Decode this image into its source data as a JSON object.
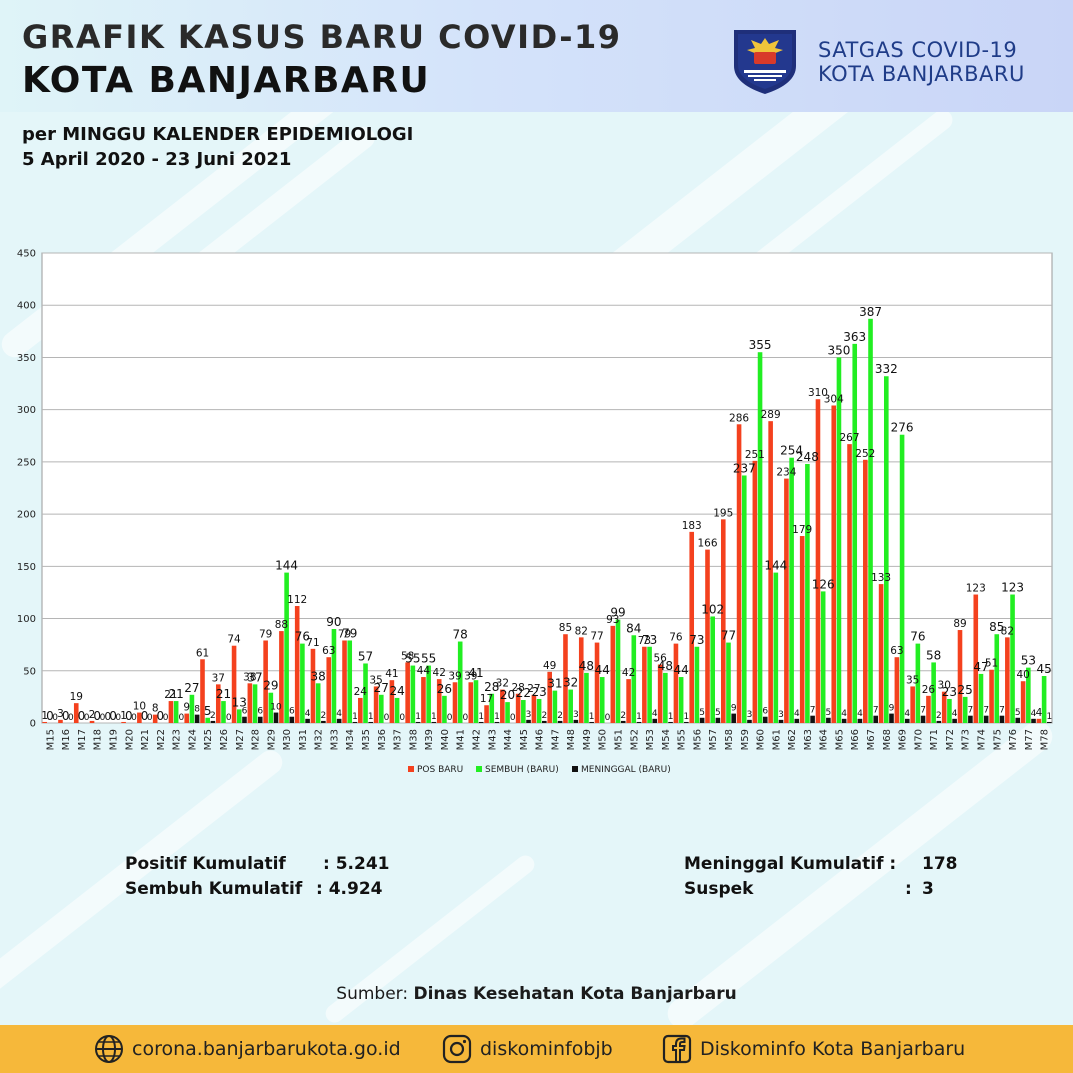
{
  "header": {
    "title_line1": "GRAFIK KASUS BARU COVID-19",
    "title_line2": "KOTA BANJARBARU",
    "subtitle_line1": "per MINGGU KALENDER EPIDEMIOLOGI",
    "subtitle_line2": "5 April 2020 - 23 Juni 2021",
    "org_line1": "SATGAS COVID-19",
    "org_line2": "KOTA BANJARBARU",
    "logo_icon": "garuda-shield-logo"
  },
  "chart_data": {
    "type": "bar",
    "title": "",
    "xlabel": "",
    "ylabel": "",
    "ylim": [
      0,
      450
    ],
    "yticks": [
      0,
      50,
      100,
      150,
      200,
      250,
      300,
      350,
      400,
      450
    ],
    "grid": true,
    "legend_position": "bottom",
    "categories": [
      "M15",
      "M16",
      "M17",
      "M18",
      "M19",
      "M20",
      "M21",
      "M22",
      "M23",
      "M24",
      "M25",
      "M26",
      "M27",
      "M28",
      "M29",
      "M30",
      "M31",
      "M32",
      "M33",
      "M34",
      "M35",
      "M36",
      "M37",
      "M38",
      "M39",
      "M40",
      "M41",
      "M42",
      "M43",
      "M44",
      "M45",
      "M46",
      "M47",
      "M48",
      "M49",
      "M50",
      "M51",
      "M52",
      "M53",
      "M54",
      "M55",
      "M56",
      "M57",
      "M58",
      "M59",
      "M60",
      "M61",
      "M62",
      "M63",
      "M64",
      "M65",
      "M66",
      "M67",
      "M68",
      "M69",
      "M70",
      "M71",
      "M72",
      "M73",
      "M74",
      "M75",
      "M76",
      "M77",
      "M78"
    ],
    "series": [
      {
        "name": "POS BARU",
        "color": "#f4411e",
        "values": [
          1,
          3,
          19,
          2,
          0,
          1,
          10,
          8,
          21,
          9,
          61,
          37,
          74,
          38,
          79,
          88,
          112,
          71,
          63,
          79,
          24,
          35,
          41,
          58,
          44,
          42,
          39,
          39,
          17,
          32,
          28,
          27,
          49,
          85,
          82,
          77,
          93,
          42,
          73,
          56,
          76,
          183,
          166,
          195,
          286,
          251,
          289,
          234,
          179,
          310,
          304,
          267,
          252,
          133,
          63,
          35,
          26,
          30,
          89,
          123,
          51,
          82,
          40,
          4
        ]
      },
      {
        "name": "SEMBUH (BARU)",
        "color": "#22ee22",
        "values": [
          0,
          0,
          0,
          0,
          0,
          0,
          0,
          0,
          21,
          27,
          5,
          21,
          13,
          37,
          29,
          144,
          76,
          38,
          90,
          79,
          57,
          27,
          24,
          55,
          55,
          26,
          78,
          41,
          28,
          20,
          22,
          23,
          31,
          32,
          48,
          44,
          99,
          84,
          73,
          48,
          44,
          73,
          102,
          77,
          237,
          355,
          144,
          254,
          248,
          126,
          350,
          363,
          387,
          332,
          276,
          76,
          58,
          23,
          25,
          47,
          85,
          123,
          53,
          45
        ]
      },
      {
        "name": "MENINGGAL (BARU)",
        "color": "#111111",
        "values": [
          0,
          0,
          0,
          0,
          0,
          0,
          0,
          0,
          0,
          8,
          2,
          0,
          6,
          6,
          10,
          6,
          4,
          2,
          4,
          1,
          1,
          0,
          0,
          1,
          1,
          0,
          0,
          1,
          1,
          0,
          3,
          2,
          2,
          3,
          1,
          0,
          2,
          1,
          4,
          1,
          1,
          5,
          5,
          9,
          3,
          6,
          3,
          4,
          7,
          5,
          4,
          4,
          7,
          9,
          4,
          7,
          2,
          4,
          7,
          7,
          7,
          5,
          4,
          1
        ]
      }
    ]
  },
  "stats": {
    "pos_label": "Positif Kumulatif",
    "pos_value": ": 5.241",
    "sembuh_label": "Sembuh Kumulatif",
    "sembuh_value": ": 4.924",
    "meninggal_label": "Meninggal Kumulatif :",
    "meninggal_value": "178",
    "suspek_label": "Suspek",
    "suspek_sep": ":",
    "suspek_value": "3"
  },
  "source": {
    "prefix": "Sumber:",
    "name": "Dinas Kesehatan Kota Banjarbaru"
  },
  "footer": {
    "website": "corona.banjarbarukota.go.id",
    "website_icon": "globe-icon",
    "instagram": "diskominfobjb",
    "instagram_icon": "instagram-icon",
    "facebook": "Diskominfo Kota Banjarbaru",
    "facebook_icon": "facebook-icon"
  }
}
